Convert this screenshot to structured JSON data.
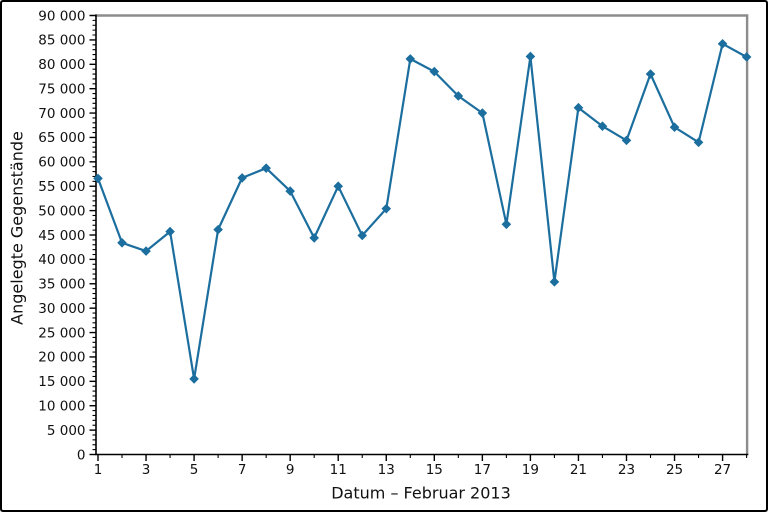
{
  "figure": {
    "background": "#ffffff",
    "border_color": "#000000"
  },
  "chart_data": {
    "type": "line",
    "title": "",
    "xlabel": "Datum – Februar 2013",
    "ylabel": "Angelegte Gegenstände",
    "x": [
      1,
      2,
      3,
      4,
      5,
      6,
      7,
      8,
      9,
      10,
      11,
      12,
      13,
      14,
      15,
      16,
      17,
      18,
      19,
      20,
      21,
      22,
      23,
      24,
      25,
      26,
      27,
      28
    ],
    "values": [
      56600,
      43400,
      41700,
      45700,
      15500,
      46100,
      56700,
      58700,
      54000,
      44400,
      55000,
      44900,
      50400,
      81100,
      78500,
      73500,
      70000,
      47200,
      81600,
      35400,
      71100,
      67300,
      64400,
      78000,
      67100,
      64000,
      84200,
      81500
    ],
    "xlim": [
      1,
      28
    ],
    "ylim": [
      0,
      90000
    ],
    "y_major_step": 5000,
    "y_minor_step": 1000,
    "x_labeled_days": "odd",
    "y_tick_labels": [
      "0",
      "5 000",
      "10 000",
      "15 000",
      "20 000",
      "25 000",
      "30 000",
      "35 000",
      "40 000",
      "45 000",
      "50 000",
      "55 000",
      "60 000",
      "65 000",
      "70 000",
      "75 000",
      "80 000",
      "85 000",
      "90 000"
    ],
    "x_tick_labels": [
      "1",
      "3",
      "5",
      "7",
      "9",
      "11",
      "13",
      "15",
      "17",
      "19",
      "21",
      "23",
      "25",
      "27"
    ],
    "grid": false,
    "legend": "none",
    "marker": "diamond",
    "line_color": "#1b6e9e",
    "frame_color": "#8c8c8c",
    "axis_color": "#000000",
    "tick_label_color": "#111111"
  }
}
